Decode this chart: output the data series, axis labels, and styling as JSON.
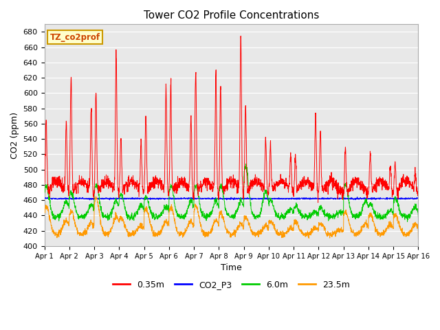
{
  "title": "Tower CO2 Profile Concentrations",
  "xlabel": "Time",
  "ylabel": "CO2 (ppm)",
  "ylim": [
    400,
    690
  ],
  "yticks": [
    400,
    420,
    440,
    460,
    480,
    500,
    520,
    540,
    560,
    580,
    600,
    620,
    640,
    660,
    680
  ],
  "annotation_text": "TZ_co2prof",
  "annotation_bg": "#ffffcc",
  "annotation_border": "#cc9900",
  "series_colors": [
    "#ff0000",
    "#0000ff",
    "#00cc00",
    "#ff9900"
  ],
  "series_labels": [
    "0.35m",
    "CO2_P3",
    "6.0m",
    "23.5m"
  ],
  "bg_color": "#e8e8e8",
  "n_days": 15,
  "points_per_day": 144,
  "xticklabels": [
    "Apr 1",
    "Apr 2",
    "Apr 3",
    "Apr 4",
    "Apr 5",
    "Apr 6",
    "Apr 7",
    "Apr 8",
    "Apr 9",
    "Apr 10",
    "Apr 11",
    "Apr 12",
    "Apr 13",
    "Apr 14",
    "Apr 15",
    "Apr 16"
  ],
  "red_morning_peaks": [
    563,
    620,
    595,
    538,
    565,
    607,
    625,
    605,
    580,
    530,
    512,
    545,
    525,
    518,
    503
  ],
  "red_night_peaks": [
    555,
    575,
    648,
    530,
    600,
    565,
    623,
    670,
    534,
    513,
    570,
    468,
    470,
    500,
    490
  ],
  "red_min": 465,
  "green_morning_peaks": [
    478,
    470,
    480,
    467,
    465,
    479,
    479,
    479,
    505,
    460,
    452,
    451,
    479,
    455,
    463
  ],
  "green_min": 438,
  "orange_morning_peaks": [
    451,
    445,
    462,
    437,
    449,
    450,
    452,
    443,
    438,
    432,
    432,
    430,
    444,
    442,
    440
  ],
  "orange_min": 415,
  "blue_base": 462
}
